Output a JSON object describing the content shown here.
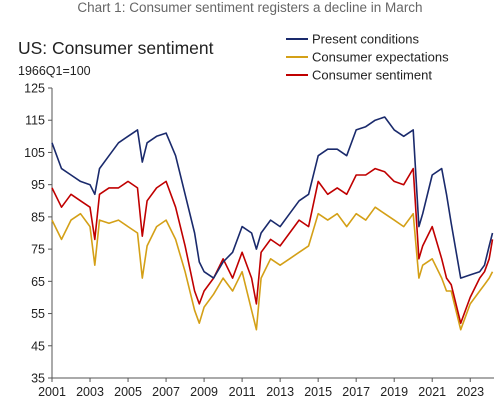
{
  "chart_title": "Chart 1: Consumer sentiment registers a decline in March",
  "chart_data": {
    "type": "line",
    "title": "US: Consumer sentiment",
    "subtitle": "1966Q1=100",
    "xlabel": "",
    "ylabel": "",
    "xlim": [
      2001.0,
      2024.25
    ],
    "ylim": [
      35,
      125
    ],
    "yticks": [
      35,
      45,
      55,
      65,
      75,
      85,
      95,
      105,
      115,
      125
    ],
    "xticks": [
      "2001",
      "2003",
      "2005",
      "2007",
      "2009",
      "2011",
      "2013",
      "2015",
      "2017",
      "2019",
      "2021",
      "2023"
    ],
    "grid": false,
    "legend_position": "top-right",
    "x": [
      2001.0,
      2001.5,
      2002.0,
      2002.5,
      2003.0,
      2003.25,
      2003.5,
      2004.0,
      2004.5,
      2005.0,
      2005.5,
      2005.75,
      2006.0,
      2006.5,
      2007.0,
      2007.5,
      2008.0,
      2008.5,
      2008.75,
      2009.0,
      2009.5,
      2010.0,
      2010.5,
      2011.0,
      2011.5,
      2011.75,
      2012.0,
      2012.5,
      2013.0,
      2013.5,
      2014.0,
      2014.5,
      2015.0,
      2015.5,
      2016.0,
      2016.5,
      2017.0,
      2017.5,
      2018.0,
      2018.5,
      2019.0,
      2019.5,
      2020.0,
      2020.3,
      2020.5,
      2021.0,
      2021.5,
      2021.75,
      2022.0,
      2022.5,
      2023.0,
      2023.5,
      2023.75,
      2024.0,
      2024.17
    ],
    "series": [
      {
        "name": "Present conditions",
        "color": "#1a2a6c",
        "values": [
          108,
          100,
          98,
          96,
          95,
          92,
          100,
          104,
          108,
          110,
          112,
          102,
          108,
          110,
          111,
          104,
          92,
          80,
          71,
          68,
          66,
          71,
          74,
          82,
          80,
          75,
          80,
          84,
          82,
          86,
          90,
          92,
          104,
          106,
          106,
          104,
          112,
          113,
          115,
          116,
          112,
          110,
          112,
          82,
          86,
          98,
          100,
          92,
          83,
          66,
          67,
          68,
          70,
          76,
          80
        ]
      },
      {
        "name": "Consumer expectations",
        "color": "#d4a017",
        "values": [
          84,
          78,
          84,
          86,
          82,
          70,
          84,
          83,
          84,
          82,
          80,
          66,
          76,
          82,
          84,
          78,
          68,
          56,
          52,
          57,
          61,
          66,
          62,
          68,
          56,
          50,
          66,
          72,
          70,
          72,
          74,
          76,
          86,
          84,
          86,
          82,
          86,
          84,
          88,
          86,
          84,
          82,
          86,
          66,
          70,
          72,
          66,
          62,
          62,
          50,
          58,
          62,
          64,
          66,
          68
        ]
      },
      {
        "name": "Consumer sentiment",
        "color": "#c00000",
        "values": [
          94,
          88,
          92,
          90,
          88,
          78,
          92,
          94,
          94,
          96,
          94,
          79,
          90,
          94,
          96,
          88,
          76,
          62,
          58,
          62,
          66,
          72,
          66,
          74,
          66,
          58,
          74,
          78,
          76,
          80,
          84,
          82,
          96,
          92,
          94,
          92,
          98,
          98,
          100,
          99,
          96,
          95,
          100,
          72,
          76,
          82,
          72,
          66,
          64,
          52,
          60,
          66,
          68,
          72,
          78
        ]
      }
    ]
  }
}
